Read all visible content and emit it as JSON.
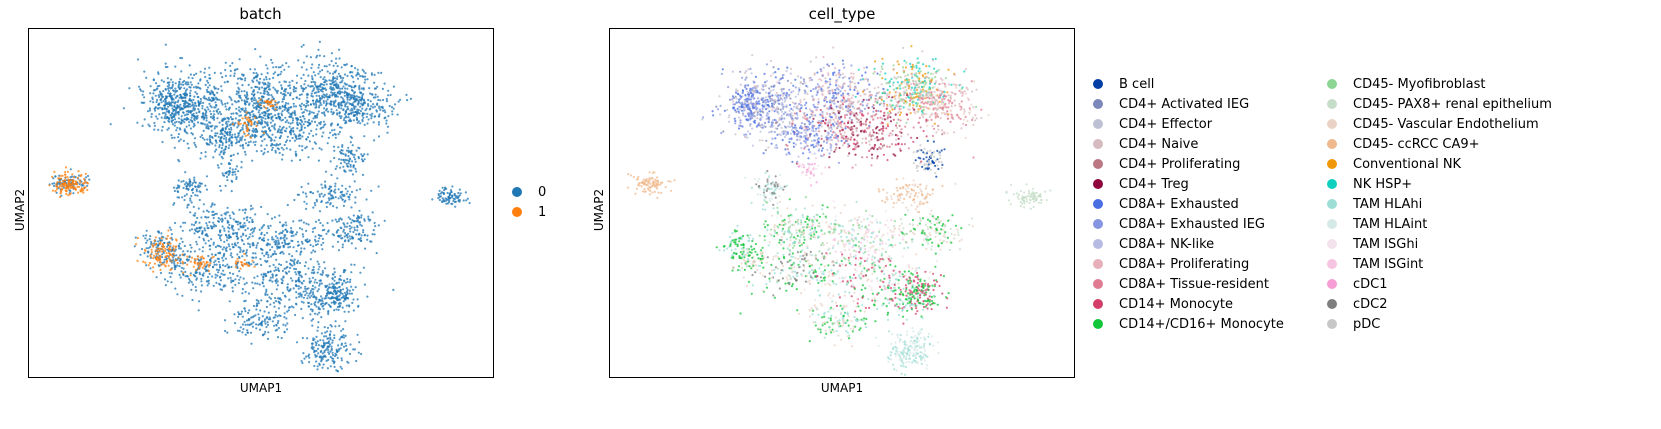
{
  "chart_data": [
    {
      "type": "scatter",
      "title": "batch",
      "xlabel": "UMAP1",
      "ylabel": "UMAP2",
      "grid": false,
      "legend_position": "right",
      "series": [
        {
          "name": "0",
          "color": "#1f77b4"
        },
        {
          "name": "1",
          "color": "#ff7f0e"
        }
      ]
    },
    {
      "type": "scatter",
      "title": "cell_type",
      "xlabel": "UMAP1",
      "ylabel": "UMAP2",
      "grid": false,
      "legend_position": "right",
      "series": [
        {
          "name": "B cell",
          "color": "#023fa5"
        },
        {
          "name": "CD4+ Activated IEG",
          "color": "#7d87b9"
        },
        {
          "name": "CD4+ Effector",
          "color": "#bec1d4"
        },
        {
          "name": "CD4+ Naive",
          "color": "#d6bcc0"
        },
        {
          "name": "CD4+ Proliferating",
          "color": "#bb7784"
        },
        {
          "name": "CD4+ Treg",
          "color": "#8e063b"
        },
        {
          "name": "CD8A+ Exhausted",
          "color": "#4a6fe3"
        },
        {
          "name": "CD8A+ Exhausted IEG",
          "color": "#8595e1"
        },
        {
          "name": "CD8A+ NK-like",
          "color": "#b5bbe3"
        },
        {
          "name": "CD8A+ Proliferating",
          "color": "#e6afb9"
        },
        {
          "name": "CD8A+ Tissue-resident",
          "color": "#e07b91"
        },
        {
          "name": "CD14+ Monocyte",
          "color": "#d33f6a"
        },
        {
          "name": "CD14+/CD16+ Monocyte",
          "color": "#11c638"
        },
        {
          "name": "CD45- Myofibroblast",
          "color": "#8dd593"
        },
        {
          "name": "CD45- PAX8+ renal epithelium",
          "color": "#c6dec7"
        },
        {
          "name": "CD45- Vascular Endothelium",
          "color": "#ead3c6"
        },
        {
          "name": "CD45- ccRCC CA9+",
          "color": "#f0b98d"
        },
        {
          "name": "Conventional NK",
          "color": "#ef9708"
        },
        {
          "name": "NK HSP+",
          "color": "#0fcfc0"
        },
        {
          "name": "TAM HLAhi",
          "color": "#9cded6"
        },
        {
          "name": "TAM HLAint",
          "color": "#d5eae7"
        },
        {
          "name": "TAM ISGhi",
          "color": "#f3e1eb"
        },
        {
          "name": "TAM ISGint",
          "color": "#f6c4e1"
        },
        {
          "name": "cDC1",
          "color": "#f79cd4"
        },
        {
          "name": "cDC2",
          "color": "#7f7f7f"
        },
        {
          "name": "pDC",
          "color": "#c7c7c7"
        }
      ]
    }
  ]
}
